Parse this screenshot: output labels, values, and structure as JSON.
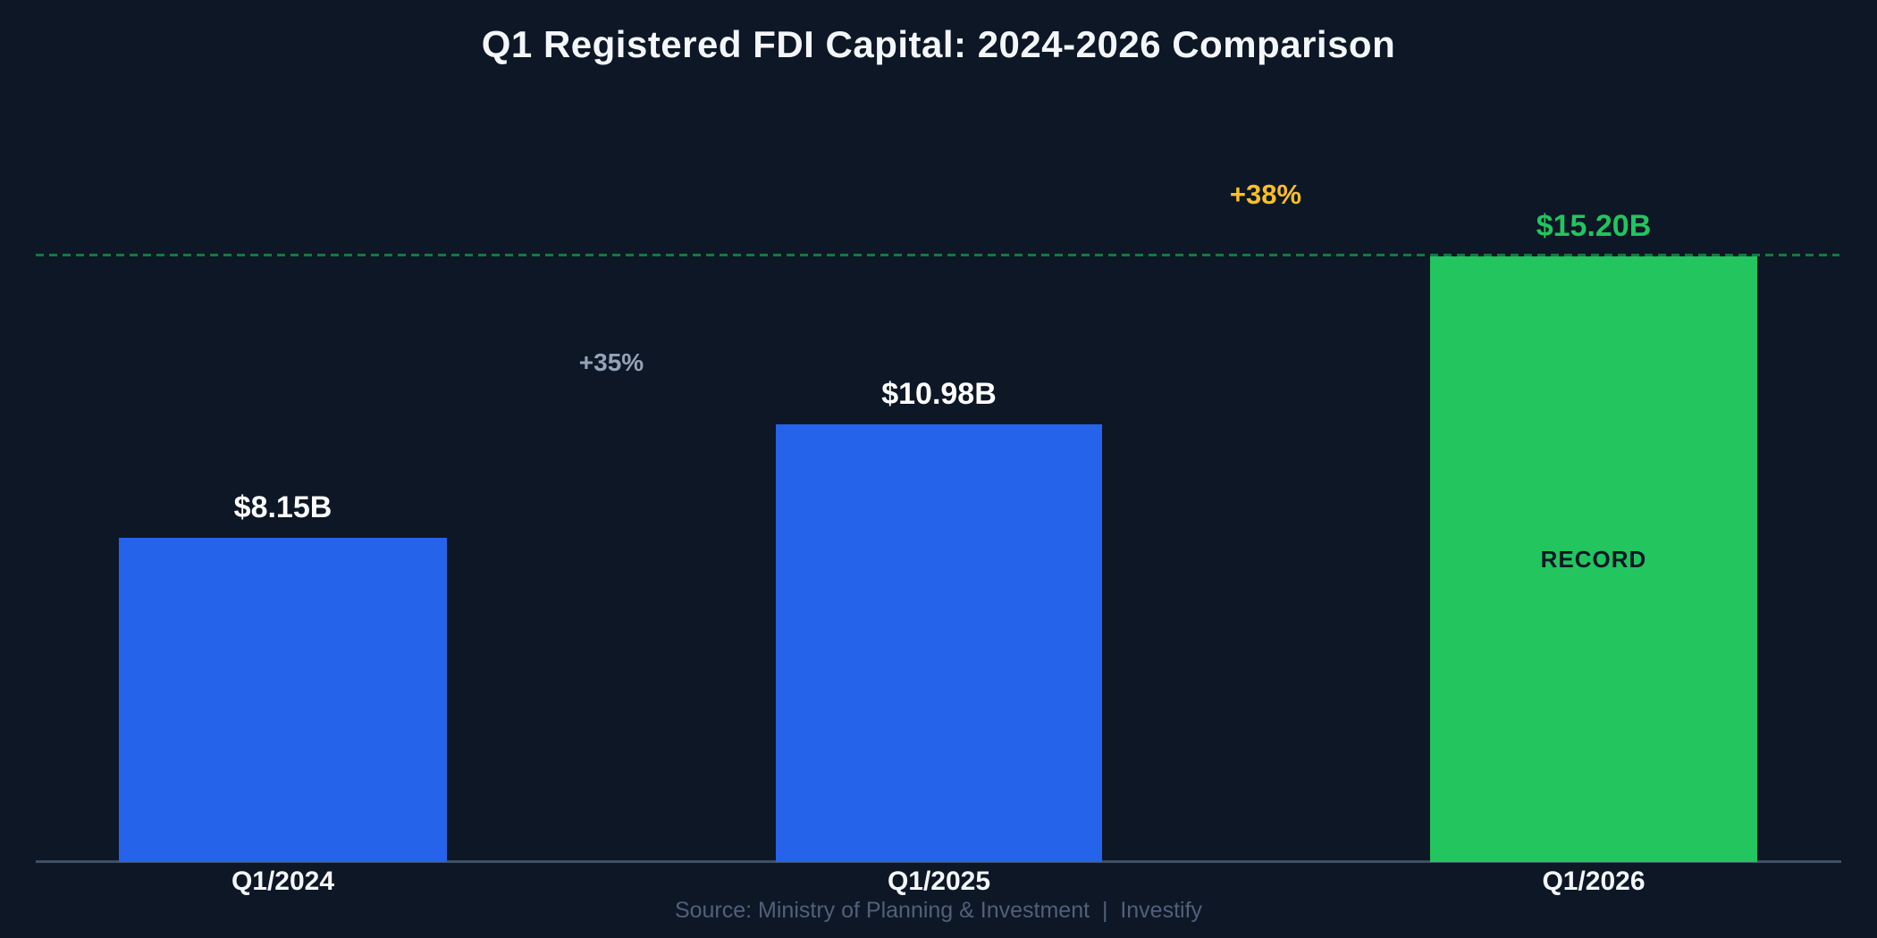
{
  "header": {
    "title": "Q1 Registered FDI Capital: 2024-2026 Comparison"
  },
  "footer": {
    "source": "Source: Ministry of Planning & Investment  |  Investify"
  },
  "colors": {
    "background": "#0D1726",
    "axis_line": "#405063",
    "record_line_green": "#22C55E",
    "bar_blue": "#2563EB",
    "bar_green": "#22C55E",
    "growth_slate": "#94A3B8",
    "growth_amber": "#FBBF24",
    "label_white": "#FFFFFF",
    "source_gray": "#51607A"
  },
  "chart_data": {
    "type": "bar",
    "title": "Q1 Registered FDI Capital: 2024-2026 Comparison",
    "categories": [
      "Q1/2024",
      "Q1/2025",
      "Q1/2026"
    ],
    "values": [
      8.15,
      10.98,
      15.2
    ],
    "value_labels": [
      "$8.15B",
      "$10.98B",
      "$15.20B"
    ],
    "value_label_colors": [
      "#FFFFFF",
      "#FFFFFF",
      "#22C55E"
    ],
    "bar_colors": [
      "#2563EB",
      "#2563EB",
      "#22C55E"
    ],
    "growth_annotations": [
      {
        "label": "+35%",
        "between": [
          "Q1/2024",
          "Q1/2025"
        ],
        "color": "#94A3B8"
      },
      {
        "label": "+38%",
        "between": [
          "Q1/2025",
          "Q1/2026"
        ],
        "color": "#FBBF24"
      }
    ],
    "record_bar": {
      "index": 2,
      "badge": "RECORD"
    },
    "record_line": {
      "value": 15.2,
      "style": "dashed",
      "color": "#22C55E"
    },
    "ylim": [
      0,
      15.2
    ],
    "y_axis_visible": false,
    "grid": false,
    "legend": false,
    "caption": "Source: Ministry of Planning & Investment  |  Investify"
  }
}
